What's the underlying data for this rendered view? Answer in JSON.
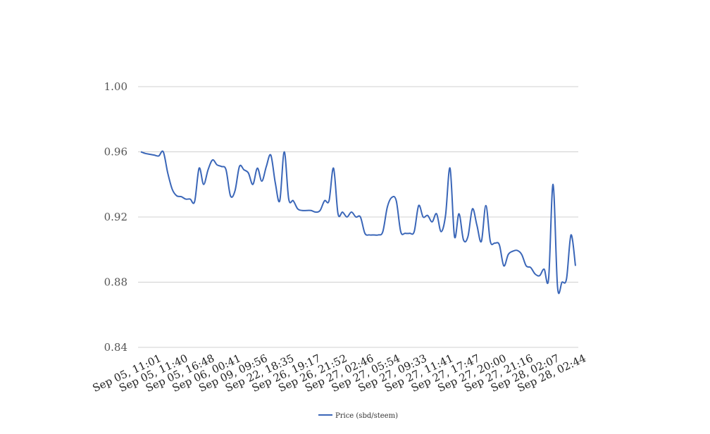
{
  "chart_data": {
    "type": "line",
    "title": "",
    "xlabel": "",
    "ylabel": "",
    "ylim": [
      0.84,
      1.0
    ],
    "y_ticks": [
      "0.84",
      "0.88",
      "0.92",
      "0.96",
      "1.00"
    ],
    "grid": true,
    "legend_position": "bottom",
    "x_tick_labels": [
      "Sep 05, 11:01",
      "Sep 05, 11:40",
      "Sep 05, 16:48",
      "Sep 06, 00:41",
      "Sep 09, 09:56",
      "Sep 22, 18:35",
      "Sep 26, 19:17",
      "Sep 26, 21:52",
      "Sep 27, 02:46",
      "Sep 27, 05:54",
      "Sep 27, 09:33",
      "Sep 27, 11:41",
      "Sep 27, 17:47",
      "Sep 27, 20:00",
      "Sep 27, 21:16",
      "Sep 28, 02:07",
      "Sep 28, 02:44"
    ],
    "series": [
      {
        "name": "Price (sbd/steem)",
        "color": "#3a66b8",
        "values": [
          0.96,
          0.959,
          0.9585,
          0.958,
          0.9575,
          0.96,
          0.947,
          0.937,
          0.933,
          0.9325,
          0.931,
          0.931,
          0.9295,
          0.95,
          0.94,
          0.949,
          0.955,
          0.952,
          0.951,
          0.949,
          0.933,
          0.936,
          0.951,
          0.949,
          0.947,
          0.94,
          0.95,
          0.942,
          0.951,
          0.958,
          0.941,
          0.93,
          0.96,
          0.931,
          0.93,
          0.925,
          0.924,
          0.924,
          0.924,
          0.923,
          0.924,
          0.93,
          0.93,
          0.95,
          0.922,
          0.923,
          0.92,
          0.923,
          0.92,
          0.92,
          0.91,
          0.909,
          0.909,
          0.909,
          0.911,
          0.926,
          0.932,
          0.93,
          0.911,
          0.91,
          0.91,
          0.911,
          0.927,
          0.92,
          0.921,
          0.917,
          0.922,
          0.911,
          0.921,
          0.95,
          0.908,
          0.922,
          0.906,
          0.908,
          0.925,
          0.915,
          0.905,
          0.927,
          0.905,
          0.904,
          0.903,
          0.89,
          0.897,
          0.899,
          0.8995,
          0.897,
          0.89,
          0.889,
          0.885,
          0.884,
          0.888,
          0.882,
          0.94,
          0.877,
          0.88,
          0.882,
          0.909,
          0.89
        ]
      }
    ]
  }
}
